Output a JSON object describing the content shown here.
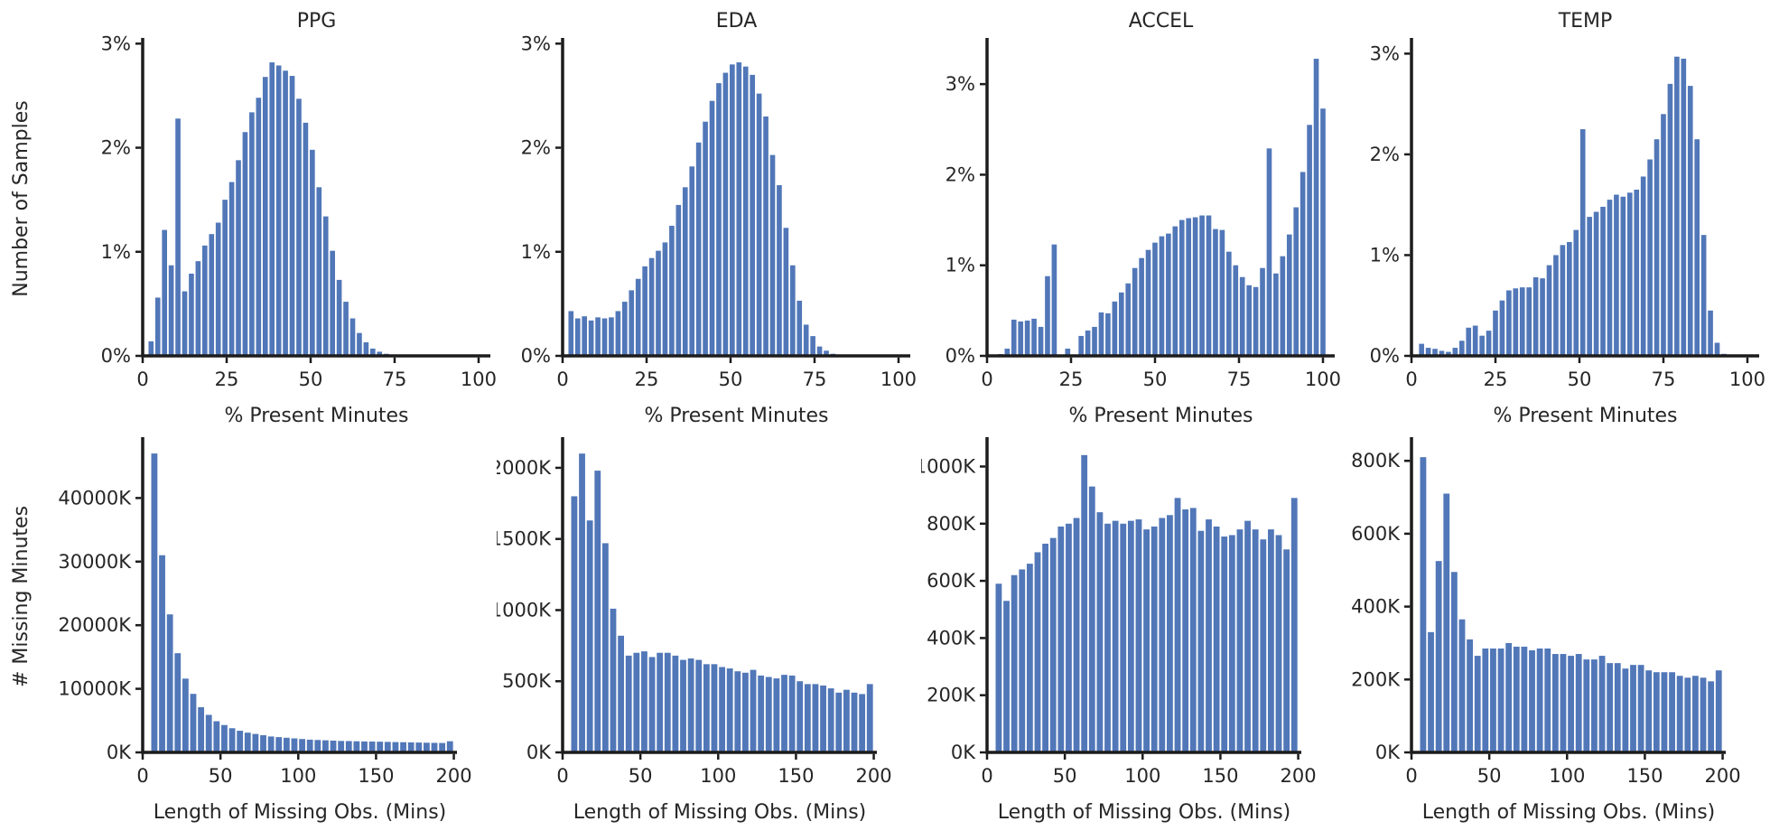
{
  "style": {
    "bar_color": "#5177b8",
    "spine_color": "#1c1c1c",
    "text_color": "#262626",
    "background": "#ffffff"
  },
  "chart_data": [
    {
      "id": "ppg-present-minutes",
      "type": "bar",
      "title": "PPG",
      "xlabel": "% Present Minutes",
      "ylabel": "Number of Samples",
      "x_ticks": [
        0,
        25,
        50,
        75,
        100
      ],
      "x_tick_labels": [
        "0",
        "25",
        "50",
        "75",
        "100"
      ],
      "xlim": [
        0,
        103.5
      ],
      "y_ticks": [
        0,
        1,
        2,
        3
      ],
      "y_tick_labels": [
        "0%",
        "1%",
        "2%",
        "3%"
      ],
      "ylim": [
        0,
        3.02
      ],
      "bin_first_center": 2.5,
      "bin_width": 2,
      "grid": false,
      "legend": null,
      "values": [
        0.14,
        0.56,
        1.21,
        0.87,
        2.28,
        0.62,
        0.79,
        0.91,
        1.06,
        1.17,
        1.28,
        1.5,
        1.67,
        1.88,
        2.15,
        2.34,
        2.48,
        2.68,
        2.82,
        2.79,
        2.74,
        2.69,
        2.47,
        2.24,
        1.98,
        1.62,
        1.34,
        1.01,
        0.73,
        0.52,
        0.36,
        0.22,
        0.13,
        0.07,
        0.04,
        0.02
      ]
    },
    {
      "id": "eda-present-minutes",
      "type": "bar",
      "title": "EDA",
      "xlabel": "% Present Minutes",
      "ylabel": "",
      "x_ticks": [
        0,
        25,
        50,
        75,
        100
      ],
      "x_tick_labels": [
        "0",
        "25",
        "50",
        "75",
        "100"
      ],
      "xlim": [
        0,
        103.5
      ],
      "y_ticks": [
        0,
        1,
        2,
        3
      ],
      "y_tick_labels": [
        "0%",
        "1%",
        "2%",
        "3%"
      ],
      "ylim": [
        0,
        3.02
      ],
      "bin_first_center": 2.5,
      "bin_width": 2,
      "grid": false,
      "legend": null,
      "values": [
        0.43,
        0.36,
        0.38,
        0.34,
        0.37,
        0.36,
        0.37,
        0.43,
        0.52,
        0.63,
        0.74,
        0.86,
        0.94,
        1.01,
        1.09,
        1.25,
        1.45,
        1.62,
        1.82,
        2.05,
        2.25,
        2.45,
        2.62,
        2.72,
        2.8,
        2.82,
        2.78,
        2.7,
        2.52,
        2.3,
        1.93,
        1.64,
        1.23,
        0.87,
        0.53,
        0.3,
        0.19,
        0.09,
        0.05,
        0.02
      ]
    },
    {
      "id": "accel-present-minutes",
      "type": "bar",
      "title": "ACCEL",
      "xlabel": "% Present Minutes",
      "ylabel": "",
      "x_ticks": [
        0,
        25,
        50,
        75,
        100
      ],
      "x_tick_labels": [
        "0",
        "25",
        "50",
        "75",
        "100"
      ],
      "xlim": [
        0,
        103.5
      ],
      "y_ticks": [
        0,
        1,
        2,
        3
      ],
      "y_tick_labels": [
        "0%",
        "1%",
        "2%",
        "3%"
      ],
      "ylim": [
        0,
        3.47
      ],
      "bin_first_center": 4,
      "bin_width": 2,
      "grid": false,
      "legend": null,
      "values": [
        0.02,
        0.08,
        0.4,
        0.38,
        0.39,
        0.41,
        0.32,
        0.88,
        1.23,
        0,
        0.08,
        0,
        0.22,
        0.28,
        0.32,
        0.48,
        0.47,
        0.6,
        0.7,
        0.8,
        0.97,
        1.08,
        1.17,
        1.25,
        1.32,
        1.35,
        1.43,
        1.5,
        1.52,
        1.53,
        1.55,
        1.55,
        1.4,
        1.39,
        1.15,
        1.0,
        0.87,
        0.78,
        0.76,
        0.97,
        2.29,
        0.91,
        1.1,
        1.34,
        1.64,
        2.03,
        2.55,
        3.28,
        2.73
      ]
    },
    {
      "id": "temp-present-minutes",
      "type": "bar",
      "title": "TEMP",
      "xlabel": "% Present Minutes",
      "ylabel": "",
      "x_ticks": [
        0,
        25,
        50,
        75,
        100
      ],
      "x_tick_labels": [
        "0",
        "25",
        "50",
        "75",
        "100"
      ],
      "xlim": [
        0,
        103.5
      ],
      "y_ticks": [
        0,
        1,
        2,
        3
      ],
      "y_tick_labels": [
        "0%",
        "1%",
        "2%",
        "3%"
      ],
      "ylim": [
        0,
        3.12
      ],
      "bin_first_center": 3,
      "bin_width": 2,
      "grid": false,
      "legend": null,
      "values": [
        0.12,
        0.08,
        0.07,
        0.05,
        0.04,
        0.08,
        0.15,
        0.28,
        0.3,
        0.2,
        0.25,
        0.45,
        0.55,
        0.65,
        0.67,
        0.68,
        0.68,
        0.78,
        0.77,
        0.9,
        1.0,
        1.1,
        1.13,
        1.25,
        2.25,
        1.38,
        1.43,
        1.48,
        1.55,
        1.6,
        1.58,
        1.62,
        1.65,
        1.78,
        1.95,
        2.15,
        2.4,
        2.7,
        2.97,
        2.95,
        2.68,
        2.15,
        1.2,
        0.45,
        0.13,
        0.02
      ]
    },
    {
      "id": "ppg-missing-minutes",
      "type": "bar",
      "title": "",
      "xlabel": "Length of Missing Obs. (Mins)",
      "ylabel": "# Missing Minutes",
      "x_ticks": [
        0,
        50,
        100,
        150,
        200
      ],
      "x_tick_labels": [
        "0",
        "50",
        "100",
        "150",
        "200"
      ],
      "xlim": [
        0,
        202
      ],
      "y_ticks": [
        0,
        10000,
        20000,
        30000,
        40000
      ],
      "y_tick_labels": [
        "0K",
        "10000K",
        "20000K",
        "30000K",
        "40000K"
      ],
      "ylim": [
        0,
        49000
      ],
      "bin_first_center": 7.5,
      "bin_width": 5,
      "grid": false,
      "legend": null,
      "values": [
        47000,
        31000,
        21700,
        15600,
        11600,
        9200,
        7100,
        5900,
        4900,
        4300,
        3800,
        3400,
        3100,
        2900,
        2700,
        2500,
        2400,
        2300,
        2200,
        2100,
        2000,
        1950,
        1900,
        1850,
        1800,
        1780,
        1750,
        1720,
        1700,
        1680,
        1650,
        1620,
        1600,
        1580,
        1550,
        1520,
        1500,
        1480,
        1750
      ]
    },
    {
      "id": "eda-missing-minutes",
      "type": "bar",
      "title": "",
      "xlabel": "Length of Missing Obs. (Mins)",
      "ylabel": "",
      "x_ticks": [
        0,
        50,
        100,
        150,
        200
      ],
      "x_tick_labels": [
        "0",
        "50",
        "100",
        "150",
        "200"
      ],
      "xlim": [
        0,
        202
      ],
      "y_ticks": [
        0,
        500,
        1000,
        1500,
        2000
      ],
      "y_tick_labels": [
        "0K",
        "500K",
        "1000K",
        "1500K",
        "2000K"
      ],
      "ylim": [
        0,
        2190
      ],
      "bin_first_center": 7.5,
      "bin_width": 5,
      "grid": false,
      "legend": null,
      "values": [
        1800,
        2100,
        1630,
        1980,
        1470,
        1010,
        820,
        680,
        700,
        710,
        670,
        700,
        700,
        680,
        650,
        660,
        650,
        620,
        620,
        600,
        590,
        570,
        560,
        580,
        540,
        530,
        520,
        545,
        540,
        500,
        480,
        480,
        470,
        450,
        420,
        440,
        420,
        410,
        480
      ]
    },
    {
      "id": "accel-missing-minutes",
      "type": "bar",
      "title": "",
      "xlabel": "Length of Missing Obs. (Mins)",
      "ylabel": "",
      "x_ticks": [
        0,
        50,
        100,
        150,
        200
      ],
      "x_tick_labels": [
        "0",
        "50",
        "100",
        "150",
        "200"
      ],
      "xlim": [
        0,
        202
      ],
      "y_ticks": [
        0,
        200,
        400,
        600,
        800,
        1000
      ],
      "y_tick_labels": [
        "0K",
        "200K",
        "400K",
        "600K",
        "800K",
        "1000K"
      ],
      "ylim": [
        0,
        1090
      ],
      "bin_first_center": 7.5,
      "bin_width": 5,
      "grid": false,
      "legend": null,
      "values": [
        590,
        530,
        620,
        640,
        660,
        700,
        730,
        750,
        790,
        800,
        820,
        1040,
        930,
        840,
        800,
        810,
        800,
        810,
        815,
        780,
        790,
        820,
        830,
        890,
        850,
        855,
        775,
        815,
        790,
        755,
        760,
        780,
        810,
        780,
        745,
        780,
        760,
        710,
        890
      ]
    },
    {
      "id": "temp-missing-minutes",
      "type": "bar",
      "title": "",
      "xlabel": "Length of Missing Obs. (Mins)",
      "ylabel": "",
      "x_ticks": [
        0,
        50,
        100,
        150,
        200
      ],
      "x_tick_labels": [
        "0",
        "50",
        "100",
        "150",
        "200"
      ],
      "xlim": [
        0,
        202
      ],
      "y_ticks": [
        0,
        200,
        400,
        600,
        800
      ],
      "y_tick_labels": [
        "0K",
        "200K",
        "400K",
        "600K",
        "800K"
      ],
      "ylim": [
        0,
        855
      ],
      "bin_first_center": 7.5,
      "bin_width": 5,
      "grid": false,
      "legend": null,
      "values": [
        810,
        330,
        525,
        710,
        495,
        365,
        310,
        265,
        285,
        285,
        285,
        300,
        290,
        290,
        280,
        285,
        285,
        270,
        270,
        265,
        270,
        255,
        255,
        265,
        245,
        245,
        230,
        240,
        240,
        225,
        220,
        220,
        220,
        210,
        205,
        210,
        205,
        195,
        225
      ]
    }
  ]
}
